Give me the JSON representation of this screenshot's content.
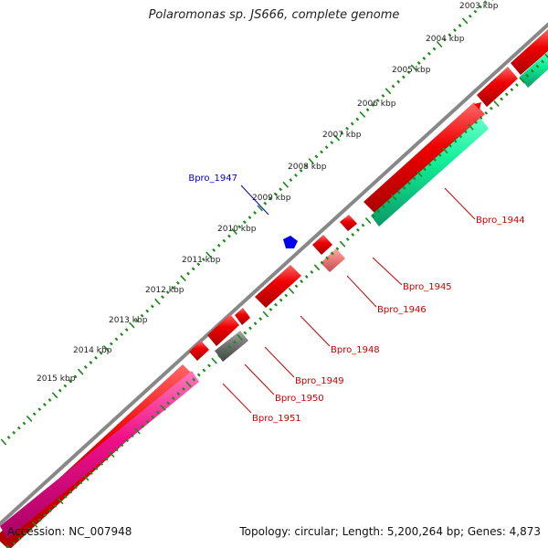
{
  "title": "Polaromonas sp. JS666, complete genome",
  "footer": {
    "accession": "Accession: NC_007948",
    "summary": "Topology: circular; Length: 5,200,264 bp; Genes: 4,873"
  },
  "scale_labels": [
    "2003 kbp",
    "2004 kbp",
    "2005 kbp",
    "2006 kbp",
    "2007 kbp",
    "2008 kbp",
    "2009 kbp",
    "2010 kbp",
    "2011 kbp",
    "2012 kbp",
    "2013 kbp",
    "2014 kbp",
    "2015 kbp"
  ],
  "colors": {
    "backbone": "#888888",
    "forward_cds": "#ee0000",
    "forward_cds_light": "#f08080",
    "reverse_cds": "#11ee99",
    "pink_cds": "#ee1188",
    "grey_cds": "#666666",
    "highlight": "#0000ee",
    "tick": "#1a8a1a",
    "label_red": "#cc0000",
    "label_blue": "#0000cc"
  },
  "gene_labels": [
    {
      "id": "Bpro_1944",
      "color": "red"
    },
    {
      "id": "Bpro_1945",
      "color": "red"
    },
    {
      "id": "Bpro_1946",
      "color": "red"
    },
    {
      "id": "Bpro_1947",
      "color": "blue"
    },
    {
      "id": "Bpro_1948",
      "color": "red"
    },
    {
      "id": "Bpro_1949",
      "color": "red"
    },
    {
      "id": "Bpro_1950",
      "color": "red"
    },
    {
      "id": "Bpro_1951",
      "color": "red"
    }
  ]
}
